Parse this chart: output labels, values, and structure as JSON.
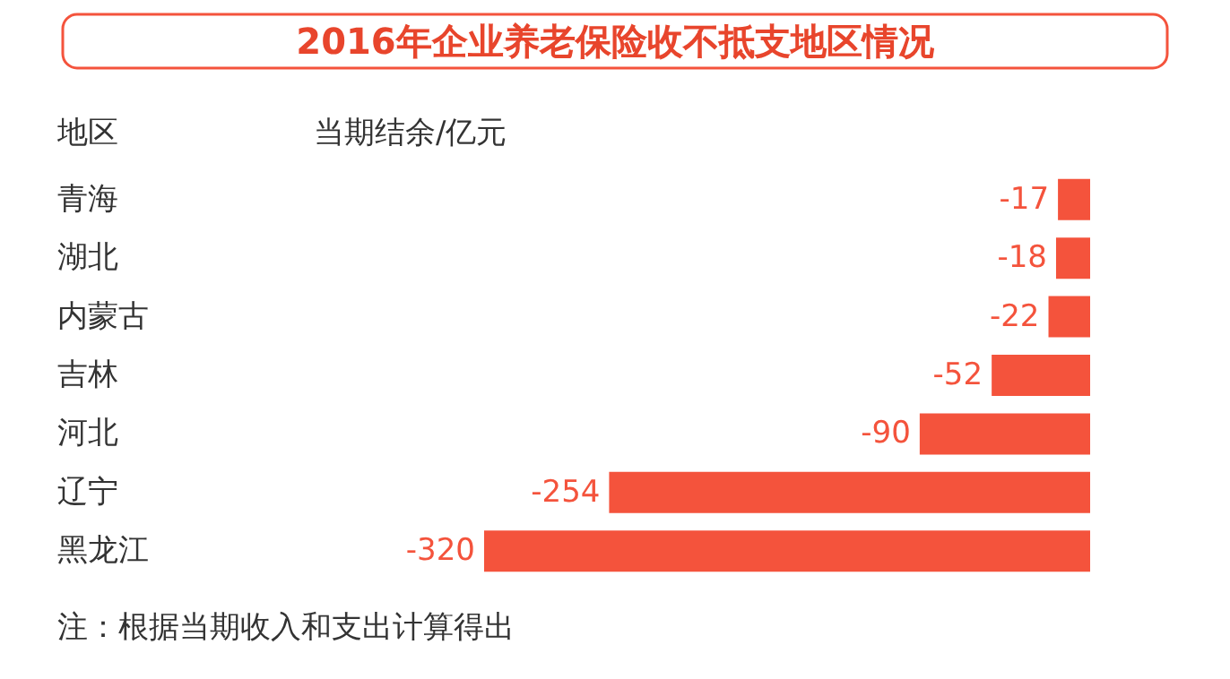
{
  "chart_data": {
    "type": "bar",
    "orientation": "horizontal",
    "title": "2016年企业养老保险收不抵支地区情况",
    "ylabel": "地区",
    "xlabel": "当期结余/亿元",
    "categories": [
      "青海",
      "湖北",
      "内蒙古",
      "吉林",
      "河北",
      "辽宁",
      "黑龙江"
    ],
    "values": [
      -17,
      -18,
      -22,
      -52,
      -90,
      -254,
      -320
    ],
    "color": "#f4533c",
    "tick_labels": "y",
    "data_labels": true,
    "grid": false,
    "annotations": [
      "注：根据当期收入和支出计算得出"
    ]
  }
}
